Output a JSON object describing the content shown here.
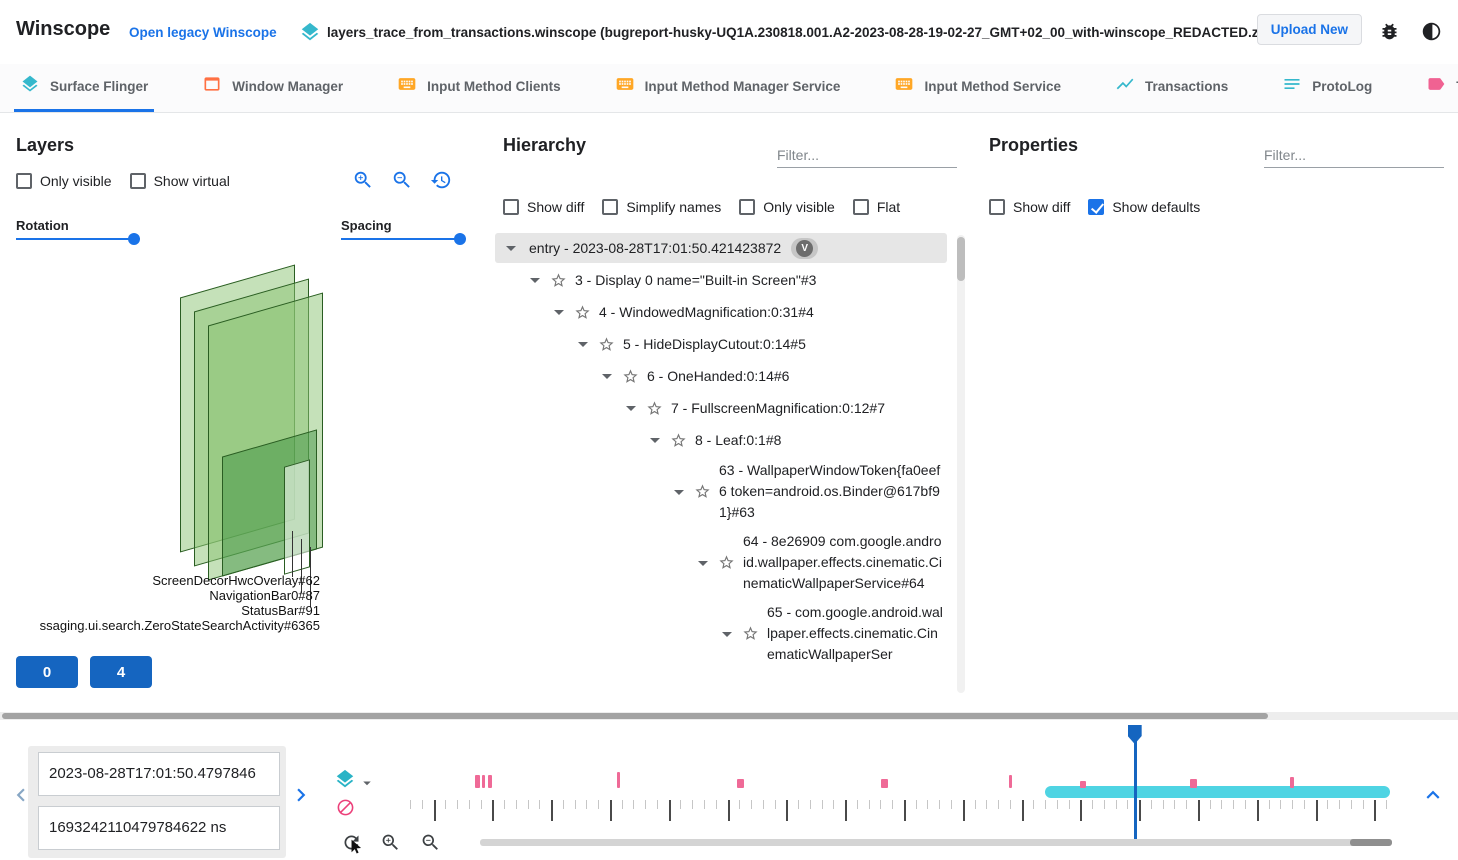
{
  "header": {
    "app_title": "Winscope",
    "legacy_link": "Open legacy Winscope",
    "file_name": "layers_trace_from_transactions.winscope (bugreport-husky-UQ1A.230818.001.A2-2023-08-28-19-02-27_GMT+02_00_with-winscope_REDACTED.zip)",
    "upload_button": "Upload New"
  },
  "tabs": {
    "items": [
      {
        "label": "Surface Flinger",
        "icon": "layers",
        "color": "#35b8cc",
        "active": true
      },
      {
        "label": "Window Manager",
        "icon": "window",
        "color": "#ff7043",
        "active": false
      },
      {
        "label": "Input Method Clients",
        "icon": "keyboard",
        "color": "#ffa726",
        "active": false
      },
      {
        "label": "Input Method Manager Service",
        "icon": "keyboard",
        "color": "#ffa726",
        "active": false
      },
      {
        "label": "Input Method Service",
        "icon": "keyboard",
        "color": "#ffa726",
        "active": false
      },
      {
        "label": "Transactions",
        "icon": "chart",
        "color": "#35b8cc",
        "active": false
      },
      {
        "label": "ProtoLog",
        "icon": "notes",
        "color": "#35b8cc",
        "active": false
      },
      {
        "label": "Tra",
        "icon": "tag",
        "color": "#f06292",
        "active": false
      }
    ]
  },
  "layers_panel": {
    "title": "Layers",
    "options": [
      {
        "label": "Only visible",
        "checked": false
      },
      {
        "label": "Show virtual",
        "checked": false
      }
    ],
    "rotation_label": "Rotation",
    "spacing_label": "Spacing",
    "rotation_pct": 95,
    "spacing_pct": 96,
    "scene_labels": [
      "ScreenDecorHwcOverlay#62",
      "NavigationBar0#87",
      "StatusBar#91",
      "ssaging.ui.search.ZeroStateSearchActivity#6365"
    ],
    "display_buttons": [
      "0",
      "4"
    ]
  },
  "hierarchy_panel": {
    "title": "Hierarchy",
    "filter_placeholder": "Filter...",
    "options": [
      {
        "label": "Show diff",
        "checked": false
      },
      {
        "label": "Simplify names",
        "checked": false
      },
      {
        "label": "Only visible",
        "checked": false
      },
      {
        "label": "Flat",
        "checked": false
      }
    ],
    "tree": [
      {
        "level": 0,
        "text": "entry - 2023-08-28T17:01:50.421423872",
        "badge": "V",
        "selected": true,
        "star": false
      },
      {
        "level": 1,
        "text": "3 - Display 0 name=\"Built-in Screen\"#3",
        "star": true
      },
      {
        "level": 2,
        "text": "4 - WindowedMagnification:0:31#4",
        "star": true
      },
      {
        "level": 3,
        "text": "5 - HideDisplayCutout:0:14#5",
        "star": true
      },
      {
        "level": 4,
        "text": "6 - OneHanded:0:14#6",
        "star": true
      },
      {
        "level": 5,
        "text": "7 - FullscreenMagnification:0:12#7",
        "star": true
      },
      {
        "level": 6,
        "text": "8 - Leaf:0:1#8",
        "star": true
      },
      {
        "level": 7,
        "text": "63 - WallpaperWindowToken{fa0eef6 token=android.os.Binder@617bf91}#63",
        "star": true
      },
      {
        "level": 8,
        "text": "64 - 8e26909 com.google.android.wallpaper.effects.cinematic.CinematicWallpaperService#64",
        "star": true
      },
      {
        "level": 9,
        "text": "65 - com.google.android.wallpaper.effects.cinematic.CinematicWallpaperSer",
        "star": true
      }
    ]
  },
  "properties_panel": {
    "title": "Properties",
    "filter_placeholder": "Filter...",
    "options": [
      {
        "label": "Show diff",
        "checked": false
      },
      {
        "label": "Show defaults",
        "checked": true
      }
    ]
  },
  "timeline": {
    "timestamp_human": "2023-08-28T17:01:50.4797846",
    "timestamp_ns": "1693242110479784622 ns",
    "marks_pct": [
      {
        "x": 6.6,
        "w": 5,
        "h": 13
      },
      {
        "x": 7.3,
        "w": 3,
        "h": 13
      },
      {
        "x": 7.9,
        "w": 4,
        "h": 13
      },
      {
        "x": 20.9,
        "w": 3,
        "h": 16
      },
      {
        "x": 33.0,
        "w": 7,
        "h": 9
      },
      {
        "x": 47.6,
        "w": 7,
        "h": 9
      },
      {
        "x": 60.5,
        "w": 3,
        "h": 13
      },
      {
        "x": 67.7,
        "w": 6,
        "h": 7
      },
      {
        "x": 78.8,
        "w": 7,
        "h": 9
      },
      {
        "x": 88.9,
        "w": 4,
        "h": 11
      }
    ],
    "selection_pct": {
      "start": 64.1,
      "end": 99.0
    },
    "playhead_pct": 73.2,
    "ruler": {
      "tick_count": 84,
      "major_every": 5
    },
    "colors": {
      "mark": "#ef6a97",
      "selection": "#4fd4e3",
      "playhead": "#1565c0"
    }
  }
}
